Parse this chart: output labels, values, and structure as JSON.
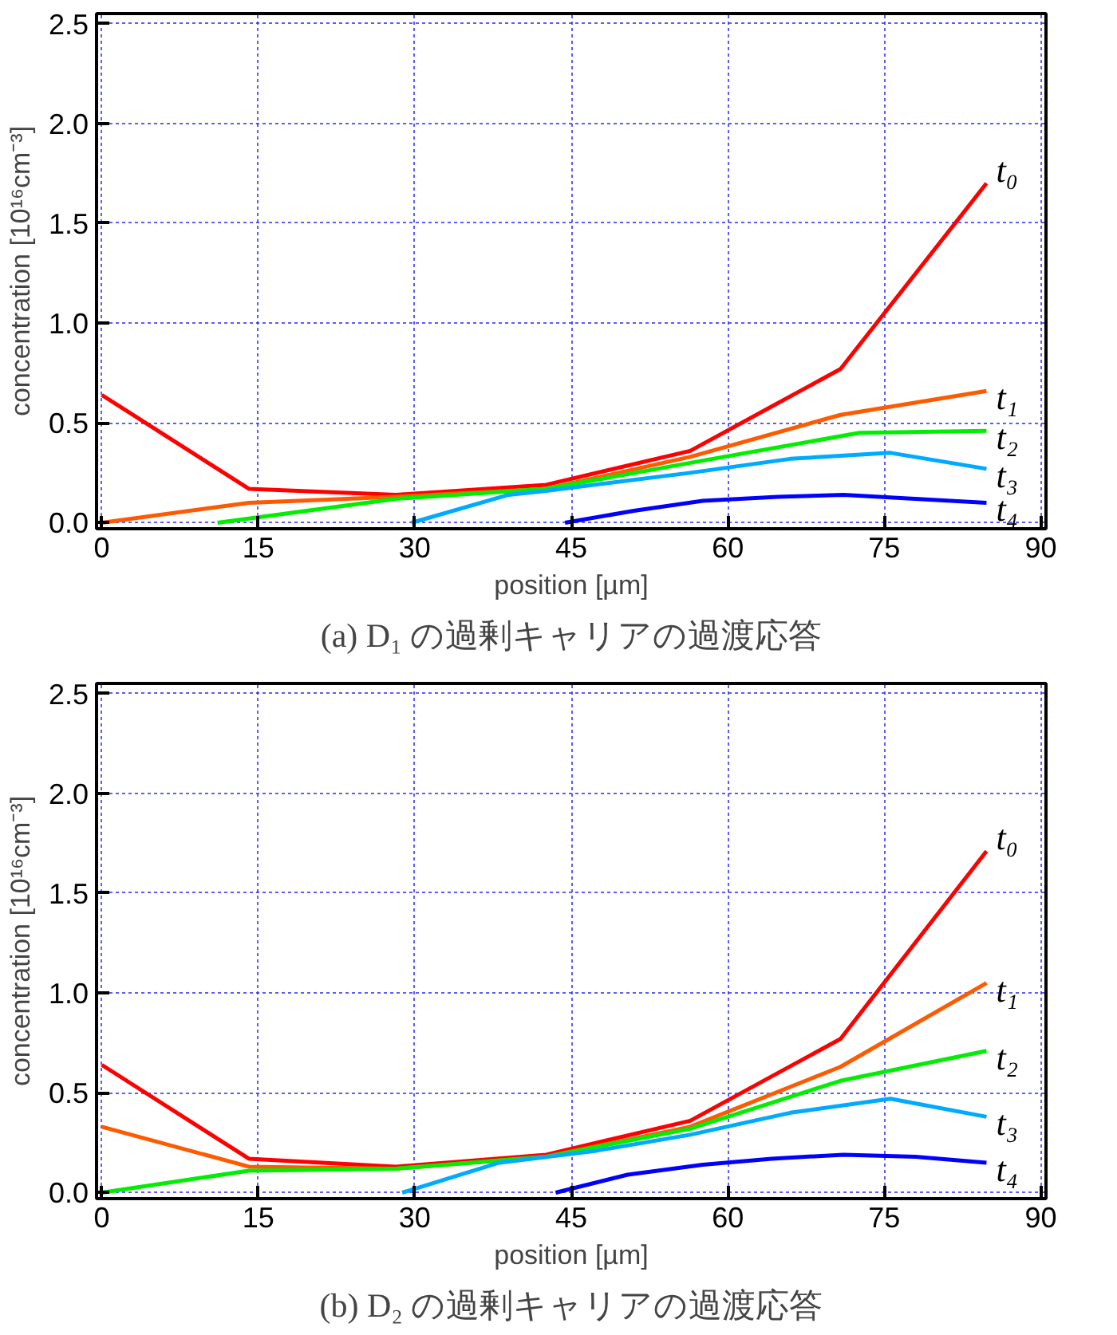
{
  "chart_data": [
    {
      "type": "line",
      "title": "(a) D₁ の過剰キャリアの過渡応答",
      "xlabel": "position [µm]",
      "ylabel": "concentration [10¹⁶cm⁻³]",
      "xlim": [
        -0.5,
        90.5
      ],
      "ylim": [
        -0.03,
        2.55
      ],
      "xticks": [
        0,
        15,
        30,
        45,
        60,
        75,
        90
      ],
      "yticks": [
        {
          "value": 0,
          "label": "0.0"
        },
        {
          "value": 0.5,
          "label": "0.5"
        },
        {
          "value": 1,
          "label": "1.0"
        },
        {
          "value": 1.5,
          "label": "1.5"
        },
        {
          "value": 2,
          "label": "2.0"
        },
        {
          "value": 2.5,
          "label": "2.5"
        }
      ],
      "grid": true,
      "legend": false,
      "line_style": "solid",
      "marker": "none",
      "series": [
        {
          "name": "t₀",
          "color": "#ff0000",
          "x": [
            0,
            14.1,
            28.2,
            42.6,
            56.4,
            70.8,
            84.8
          ],
          "values": [
            0.64,
            0.17,
            0.14,
            0.19,
            0.36,
            0.77,
            1.7
          ]
        },
        {
          "name": "t₁",
          "color": "#ff5a00",
          "x": [
            0,
            14.1,
            28.2,
            42.6,
            56.4,
            70.8,
            84.8
          ],
          "values": [
            0,
            0.1,
            0.13,
            0.17,
            0.33,
            0.54,
            0.66
          ]
        },
        {
          "name": "t₂",
          "color": "#00ee00",
          "x": [
            11.1,
            28.2,
            42.6,
            56.4,
            72.6,
            84.8
          ],
          "values": [
            0,
            0.12,
            0.17,
            0.3,
            0.45,
            0.46
          ]
        },
        {
          "name": "t₃",
          "color": "#00aaff",
          "x": [
            29.7,
            39,
            42.6,
            56.4,
            66,
            75.6,
            84.8
          ],
          "values": [
            0,
            0.14,
            0.16,
            0.25,
            0.32,
            0.35,
            0.27
          ]
        },
        {
          "name": "t₄",
          "color": "#0000ff",
          "x": [
            44.4,
            51,
            57.6,
            64.8,
            71.1,
            84.8
          ],
          "values": [
            0,
            0.06,
            0.11,
            0.13,
            0.14,
            0.1
          ]
        }
      ]
    },
    {
      "type": "line",
      "title": "(b) D₂ の過剰キャリアの過渡応答",
      "xlabel": "position [µm]",
      "ylabel": "concentration [10¹⁶cm⁻³]",
      "xlim": [
        -0.5,
        90.5
      ],
      "ylim": [
        -0.03,
        2.55
      ],
      "xticks": [
        0,
        15,
        30,
        45,
        60,
        75,
        90
      ],
      "yticks": [
        {
          "value": 0,
          "label": "0.0"
        },
        {
          "value": 0.5,
          "label": "0.5"
        },
        {
          "value": 1,
          "label": "1.0"
        },
        {
          "value": 1.5,
          "label": "1.5"
        },
        {
          "value": 2,
          "label": "2.0"
        },
        {
          "value": 2.5,
          "label": "2.5"
        }
      ],
      "grid": true,
      "legend": false,
      "line_style": "solid",
      "marker": "none",
      "series": [
        {
          "name": "t₀",
          "color": "#ff0000",
          "x": [
            0,
            14.1,
            28.2,
            42.6,
            56.4,
            70.8,
            84.8
          ],
          "values": [
            0.64,
            0.17,
            0.13,
            0.19,
            0.36,
            0.77,
            1.71
          ]
        },
        {
          "name": "t₁",
          "color": "#ff5a00",
          "x": [
            0,
            14.1,
            28.2,
            42.6,
            56.4,
            70.8,
            84.8
          ],
          "values": [
            0.33,
            0.13,
            0.12,
            0.18,
            0.33,
            0.63,
            1.05
          ]
        },
        {
          "name": "t₂",
          "color": "#00ee00",
          "x": [
            0,
            14.1,
            28.2,
            42.6,
            56.4,
            70.8,
            84.8
          ],
          "values": [
            0,
            0.11,
            0.12,
            0.18,
            0.32,
            0.56,
            0.71
          ]
        },
        {
          "name": "t₃",
          "color": "#00aaff",
          "x": [
            28.8,
            38.1,
            47.4,
            56.4,
            66,
            75.6,
            84.8
          ],
          "values": [
            0,
            0.15,
            0.21,
            0.29,
            0.4,
            0.47,
            0.38
          ]
        },
        {
          "name": "t₄",
          "color": "#0000ff",
          "x": [
            43.5,
            50.4,
            57.6,
            64.2,
            71.1,
            78,
            84.8
          ],
          "values": [
            0,
            0.09,
            0.14,
            0.17,
            0.19,
            0.18,
            0.15
          ]
        }
      ]
    }
  ]
}
